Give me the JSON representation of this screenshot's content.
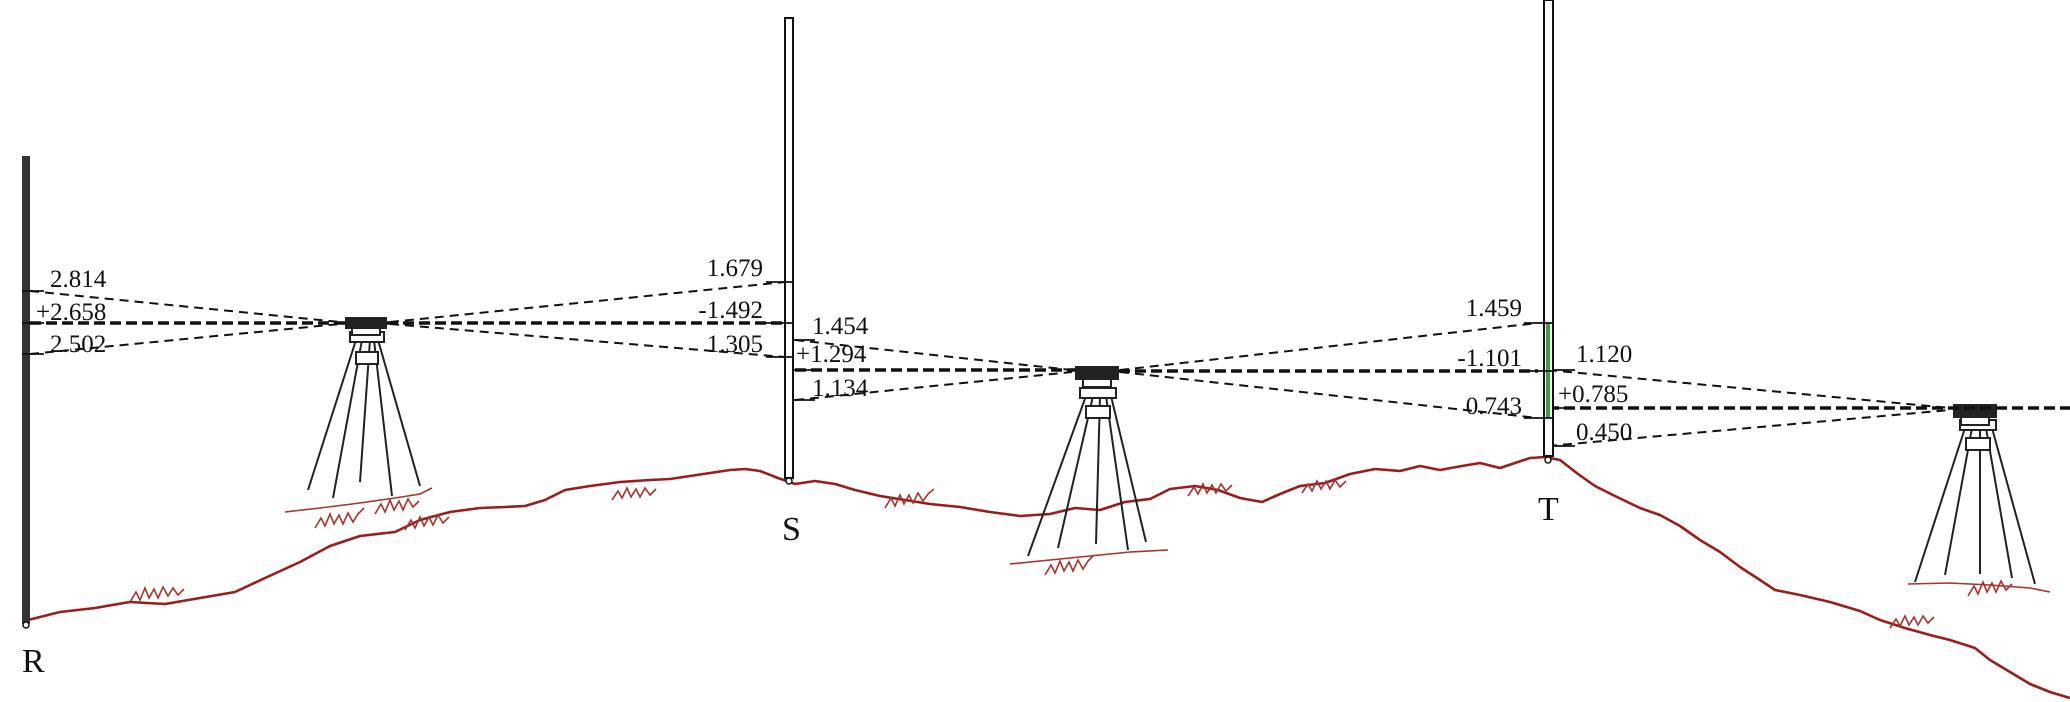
{
  "stations": {
    "R": "R",
    "S": "S",
    "T": "T"
  },
  "readings": {
    "setup1": {
      "back_upper": "2.814",
      "back_middle": "+2.658",
      "back_lower": "2.502",
      "fore_upper": "1.679",
      "fore_middle": "-1.492",
      "fore_lower": "1.305"
    },
    "setup2": {
      "back_upper": "1.454",
      "back_middle": "+1.294",
      "back_lower": "1.134",
      "fore_upper": "1.459",
      "fore_middle": "-1.101",
      "fore_lower": "0.743"
    },
    "setup3": {
      "back_upper": "1.120",
      "back_middle": "+0.785",
      "back_lower": "0.450"
    }
  },
  "colors": {
    "line": "#111111",
    "ground": "#9b1c1c",
    "grass": "#a8322c",
    "rod_mark": "#3aa040"
  },
  "icons": {
    "level_instrument": "level-instrument-icon",
    "tripod": "tripod-icon",
    "staff": "levelling-staff-icon"
  }
}
